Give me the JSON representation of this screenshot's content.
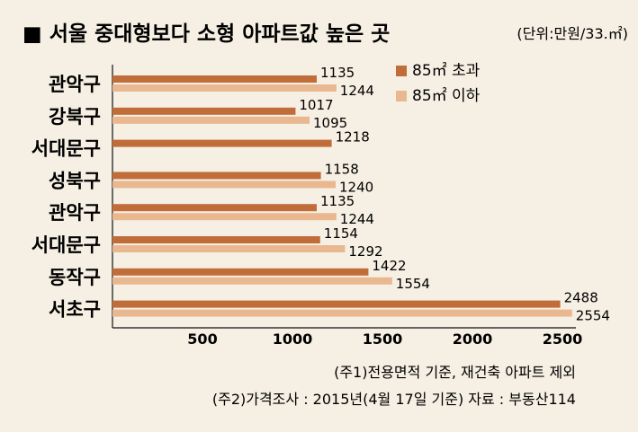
{
  "title": "■ 서울 중대형보다 소형 아파트값 높은 곳",
  "unit_label": "(단위:만원/33.㎡)",
  "notes": [
    "(주1)전용면적 기준, 재건축 아파트 제외",
    "(주2)가격조사 : 2015년(4월 17일 기준) 자료 : 부동산114"
  ],
  "chart_data": {
    "type": "bar",
    "orientation": "horizontal",
    "title": "서울 중대형보다 소형 아파트값 높은 곳",
    "unit": "만원/33.㎡",
    "categories": [
      "관악구",
      "강북구",
      "서대문구",
      "성북구",
      "관악구",
      "서대문구",
      "동작구",
      "서초구"
    ],
    "series": [
      {
        "name": "85㎡ 초과",
        "values": [
          1135,
          1017,
          1218,
          1158,
          1135,
          1154,
          1422,
          2488
        ],
        "color": "#c06d3a"
      },
      {
        "name": "85㎡ 이하",
        "values": [
          1244,
          1095,
          null,
          1240,
          1244,
          1292,
          1554,
          2554
        ],
        "color": "#e9b891"
      }
    ],
    "x_ticks": [
      500,
      1000,
      1500,
      2000,
      2500
    ],
    "xlim": [
      0,
      2600
    ],
    "legend_position": "top-right",
    "grid": false
  }
}
